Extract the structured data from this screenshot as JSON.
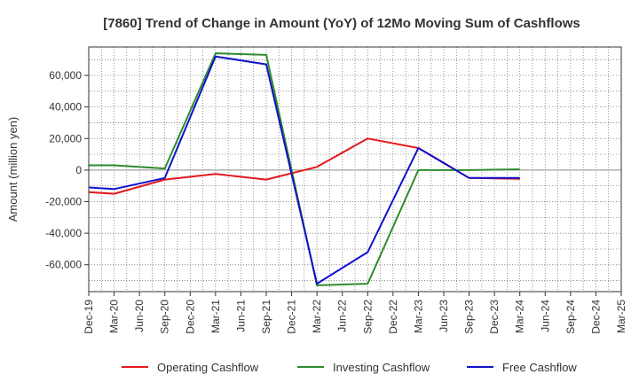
{
  "chart_data": {
    "type": "line",
    "title": "[7860]  Trend of Change in Amount (YoY) of 12Mo Moving Sum of Cashflows",
    "xlabel": "",
    "ylabel": "Amount (million yen)",
    "ylim": [
      -77000,
      78000
    ],
    "yticks": [
      -60000,
      -40000,
      -20000,
      0,
      20000,
      40000,
      60000
    ],
    "ytick_labels": [
      "-60,000",
      "-40,000",
      "-20,000",
      "0",
      "20,000",
      "40,000",
      "60,000"
    ],
    "categories": [
      "Dec-19",
      "Mar-20",
      "Jun-20",
      "Sep-20",
      "Dec-20",
      "Mar-21",
      "Jun-21",
      "Sep-21",
      "Dec-21",
      "Mar-22",
      "Jun-22",
      "Sep-22",
      "Dec-22",
      "Mar-23",
      "Jun-23",
      "Sep-23",
      "Dec-23",
      "Mar-24",
      "Jun-24",
      "Sep-24",
      "Dec-24",
      "Mar-25"
    ],
    "grid": true,
    "legend_position": "bottom",
    "series": [
      {
        "name": "Operating Cashflow",
        "color": "#e31a1c",
        "values": [
          -14000,
          -15000,
          null,
          -6000,
          null,
          -2500,
          null,
          -6000,
          null,
          2000,
          null,
          20000,
          null,
          14000,
          null,
          -5000,
          null,
          -5500,
          null,
          null,
          null,
          null
        ]
      },
      {
        "name": "Investing Cashflow",
        "color": "#2e8b2e",
        "values": [
          3000,
          3000,
          null,
          1000,
          null,
          74000,
          null,
          73000,
          null,
          -73000,
          null,
          -72000,
          null,
          0,
          null,
          0,
          null,
          500,
          null,
          null,
          null,
          null
        ]
      },
      {
        "name": "Free Cashflow",
        "color": "#1010cc",
        "values": [
          -11000,
          -12000,
          null,
          -5000,
          null,
          72000,
          null,
          67000,
          null,
          -72000,
          null,
          -52000,
          null,
          14000,
          null,
          -5000,
          null,
          -5000,
          null,
          null,
          null,
          null
        ]
      }
    ]
  }
}
